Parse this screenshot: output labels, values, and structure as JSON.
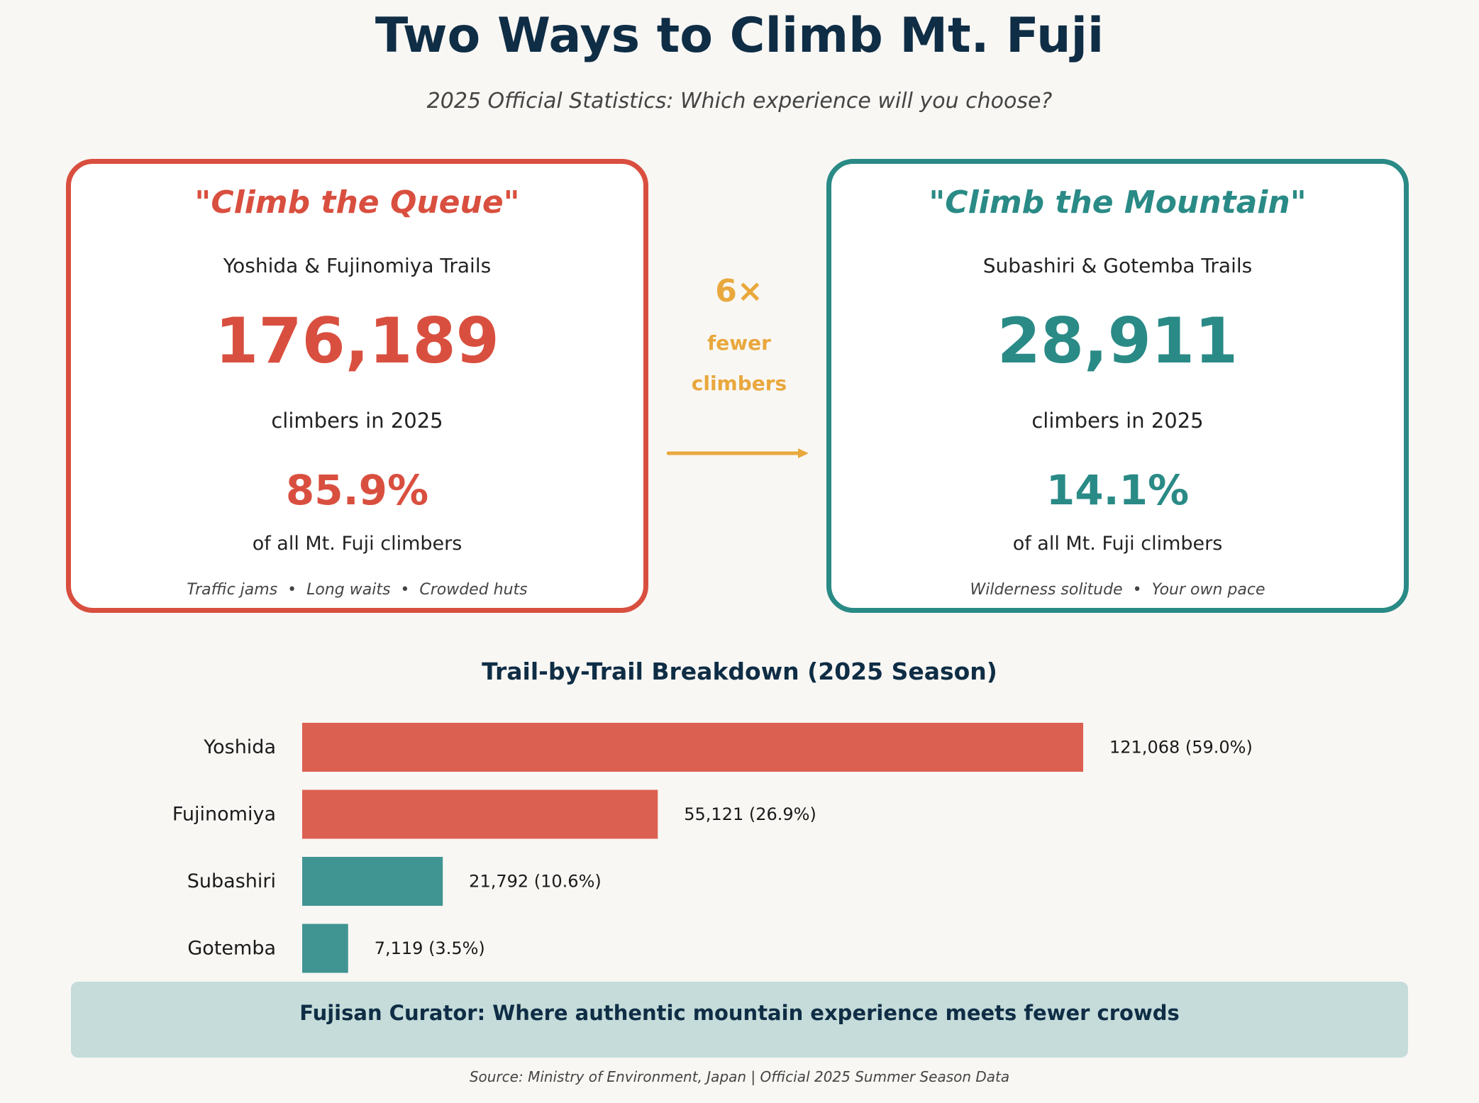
{
  "header": {
    "title": "Two Ways to Climb Mt. Fuji",
    "subtitle": "2025 Official Statistics: Which experience will you choose?"
  },
  "cards": {
    "left": {
      "heading": "\"Climb the Queue\"",
      "trails": "Yoshida & Fujinomiya Trails",
      "count": "176,189",
      "count_caption": "climbers in 2025",
      "percent": "85.9%",
      "percent_caption": "of all Mt. Fuji climbers",
      "tags": "Traffic jams  •  Long waits  •  Crowded huts",
      "color": "#d94f3f"
    },
    "right": {
      "heading": "\"Climb the Mountain\"",
      "trails": "Subashiri & Gotemba Trails",
      "count": "28,911",
      "count_caption": "climbers in 2025",
      "percent": "14.1%",
      "percent_caption": "of all Mt. Fuji climbers",
      "tags": "Wilderness solitude  •  Your own pace",
      "color": "#2a8a86"
    }
  },
  "comparison": {
    "factor": "6×",
    "line1": "fewer",
    "line2": "climbers",
    "color": "#e9a83d"
  },
  "chart_data": {
    "type": "bar",
    "orientation": "horizontal",
    "title": "Trail-by-Trail Breakdown (2025 Season)",
    "categories": [
      "Yoshida",
      "Fujinomiya",
      "Subashiri",
      "Gotemba"
    ],
    "values": [
      121068,
      55121,
      21792,
      7119
    ],
    "value_labels": [
      "121,068 (59.0%)",
      "55,121 (26.9%)",
      "21,792 (10.6%)",
      "7,119 (3.5%)"
    ],
    "colors": [
      "#dc6051",
      "#dc6051",
      "#409593",
      "#409593"
    ],
    "xlim": [
      0,
      140000
    ],
    "grid": false
  },
  "banner": {
    "text": "Fujisan Curator: Where authentic mountain experience meets fewer crowds"
  },
  "footer": {
    "source": "Source: Ministry of Environment, Japan | Official 2025 Summer Season Data"
  }
}
